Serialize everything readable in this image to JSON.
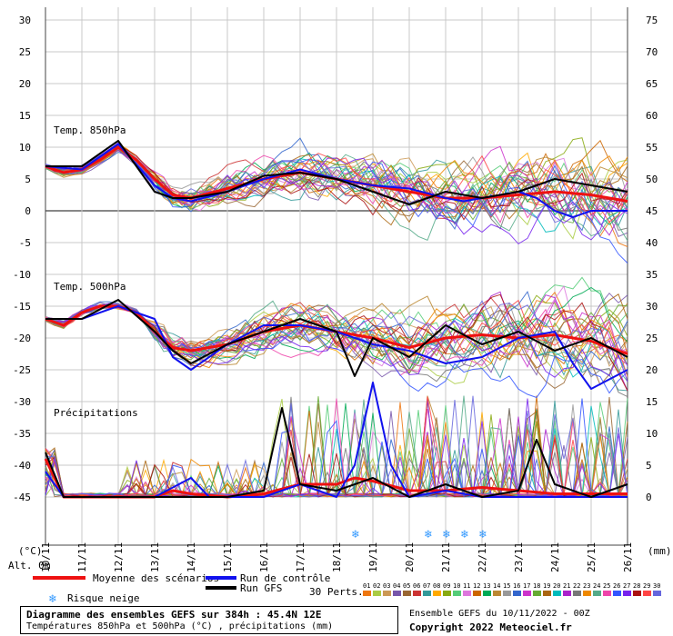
{
  "chart_data": {
    "type": "line",
    "title": "Diagramme des ensembles GEFS sur 384h : 45.4N 12E",
    "subtitle": "Températures 850hPa et 500hPa (°C) , précipitations (mm)",
    "panels": {
      "t850": "Temp. 850hPa",
      "t500": "Temp. 500hPa",
      "precip": "Précipitations"
    },
    "left_axis": {
      "unit": "(°C)",
      "range": [
        -45,
        30
      ],
      "ticks": [
        "30",
        "25",
        "20",
        "15",
        "10",
        "5",
        "0",
        "-5",
        "-10",
        "-15",
        "-20",
        "-25",
        "-30",
        "-35",
        "-40",
        "-45"
      ]
    },
    "right_axis": {
      "unit": "(mm)",
      "range": [
        0,
        75
      ],
      "ticks": [
        "75",
        "70",
        "65",
        "60",
        "55",
        "50",
        "45",
        "40",
        "35",
        "30",
        "25",
        "20",
        "15",
        "10",
        "5",
        "0"
      ]
    },
    "alt_label": "Alt. 0m",
    "x_dates": [
      "10/11",
      "11/11",
      "12/11",
      "13/11",
      "14/11",
      "15/11",
      "16/11",
      "17/11",
      "18/11",
      "19/11",
      "20/11",
      "21/11",
      "22/11",
      "23/11",
      "24/11",
      "25/11",
      "26/11"
    ],
    "x_range_days": [
      0,
      16
    ],
    "grid": true,
    "snow_risk_days": [
      8.6,
      10.6,
      11.1,
      11.6,
      12.1
    ],
    "series": [
      {
        "name": "Moyenne des scénarios",
        "color": "#ee1111",
        "t850": [
          [
            0,
            7
          ],
          [
            0.5,
            6
          ],
          [
            1,
            6.5
          ],
          [
            1.5,
            8
          ],
          [
            2,
            10
          ],
          [
            2.5,
            8
          ],
          [
            3,
            5
          ],
          [
            3.5,
            2.5
          ],
          [
            4,
            2
          ],
          [
            5,
            3.5
          ],
          [
            6,
            5
          ],
          [
            7,
            6
          ],
          [
            8,
            5
          ],
          [
            9,
            4
          ],
          [
            10,
            3
          ],
          [
            11,
            2
          ],
          [
            12,
            2
          ],
          [
            13,
            2.5
          ],
          [
            14,
            3
          ],
          [
            15,
            2.5
          ],
          [
            16,
            1.5
          ]
        ],
        "t500": [
          [
            0,
            -17
          ],
          [
            0.5,
            -18
          ],
          [
            1,
            -16
          ],
          [
            1.5,
            -15
          ],
          [
            2,
            -15
          ],
          [
            2.5,
            -16
          ],
          [
            3,
            -19
          ],
          [
            3.5,
            -21.5
          ],
          [
            4,
            -22
          ],
          [
            5,
            -21
          ],
          [
            6,
            -19
          ],
          [
            7,
            -18
          ],
          [
            8,
            -19
          ],
          [
            9,
            -20
          ],
          [
            10,
            -21.5
          ],
          [
            11,
            -20
          ],
          [
            12,
            -19.5
          ],
          [
            13,
            -20
          ],
          [
            14,
            -19.5
          ],
          [
            15,
            -20.5
          ],
          [
            16,
            -22.5
          ]
        ],
        "precip": [
          [
            0,
            6
          ],
          [
            0.5,
            0
          ],
          [
            1,
            0
          ],
          [
            2,
            0
          ],
          [
            3,
            0
          ],
          [
            3.5,
            1
          ],
          [
            4,
            0.5
          ],
          [
            5,
            0
          ],
          [
            6,
            0.5
          ],
          [
            7,
            2
          ],
          [
            8,
            2
          ],
          [
            8.5,
            3
          ],
          [
            9,
            2.5
          ],
          [
            10,
            1
          ],
          [
            11,
            1
          ],
          [
            12,
            1.5
          ],
          [
            13,
            1
          ],
          [
            14,
            0.5
          ],
          [
            15,
            0.5
          ],
          [
            16,
            0.5
          ]
        ]
      },
      {
        "name": "Run de contrôle",
        "color": "#1111ee",
        "t850": [
          [
            0,
            7
          ],
          [
            1,
            6.5
          ],
          [
            2,
            10.5
          ],
          [
            3,
            4
          ],
          [
            3.5,
            2
          ],
          [
            4,
            1.5
          ],
          [
            5,
            3
          ],
          [
            6,
            5
          ],
          [
            7,
            6.5
          ],
          [
            8,
            5
          ],
          [
            9,
            4
          ],
          [
            10,
            3.5
          ],
          [
            11,
            2
          ],
          [
            11.5,
            1.5
          ],
          [
            12,
            2
          ],
          [
            13,
            3
          ],
          [
            13.5,
            2
          ],
          [
            14,
            0
          ],
          [
            14.5,
            -1
          ],
          [
            15,
            0
          ],
          [
            16,
            0
          ]
        ],
        "t500": [
          [
            0,
            -17
          ],
          [
            1,
            -17
          ],
          [
            2,
            -15
          ],
          [
            3,
            -17
          ],
          [
            3.5,
            -23
          ],
          [
            4,
            -25
          ],
          [
            5,
            -21
          ],
          [
            6,
            -18
          ],
          [
            7,
            -18
          ],
          [
            8,
            -19
          ],
          [
            9,
            -21
          ],
          [
            10,
            -22
          ],
          [
            11,
            -24
          ],
          [
            12,
            -23
          ],
          [
            13,
            -20
          ],
          [
            14,
            -19
          ],
          [
            14.5,
            -24
          ],
          [
            15,
            -28
          ],
          [
            16,
            -25
          ]
        ],
        "precip": [
          [
            0,
            4
          ],
          [
            0.5,
            0
          ],
          [
            2,
            0
          ],
          [
            3,
            0
          ],
          [
            4,
            3
          ],
          [
            4.5,
            0
          ],
          [
            6,
            0
          ],
          [
            7,
            2
          ],
          [
            8,
            0
          ],
          [
            8.5,
            5
          ],
          [
            9,
            18
          ],
          [
            9.5,
            5
          ],
          [
            10,
            0
          ],
          [
            11,
            1
          ],
          [
            12,
            0
          ],
          [
            13,
            0
          ],
          [
            14,
            0
          ],
          [
            15,
            0
          ],
          [
            16,
            0
          ]
        ]
      },
      {
        "name": "Run GFS",
        "color": "#000000",
        "t850": [
          [
            0,
            7
          ],
          [
            1,
            7
          ],
          [
            2,
            11
          ],
          [
            3,
            3
          ],
          [
            3.5,
            2
          ],
          [
            4,
            2
          ],
          [
            5,
            3
          ],
          [
            6,
            5.5
          ],
          [
            7,
            6
          ],
          [
            8,
            5
          ],
          [
            9,
            3
          ],
          [
            10,
            1
          ],
          [
            11,
            3
          ],
          [
            12,
            2
          ],
          [
            13,
            3
          ],
          [
            14,
            5
          ],
          [
            15,
            4
          ],
          [
            16,
            3
          ]
        ],
        "t500": [
          [
            0,
            -17
          ],
          [
            1,
            -17
          ],
          [
            2,
            -14
          ],
          [
            3,
            -19
          ],
          [
            3.5,
            -22
          ],
          [
            4,
            -24
          ],
          [
            5,
            -21
          ],
          [
            6,
            -19
          ],
          [
            7,
            -17
          ],
          [
            8,
            -19
          ],
          [
            8.5,
            -26
          ],
          [
            9,
            -20
          ],
          [
            10,
            -23
          ],
          [
            11,
            -18
          ],
          [
            12,
            -21
          ],
          [
            13,
            -19
          ],
          [
            14,
            -22
          ],
          [
            15,
            -20
          ],
          [
            16,
            -23
          ]
        ],
        "precip": [
          [
            0,
            7
          ],
          [
            0.5,
            0
          ],
          [
            2,
            0
          ],
          [
            3,
            0
          ],
          [
            4,
            0
          ],
          [
            5,
            0
          ],
          [
            6,
            1
          ],
          [
            6.5,
            14
          ],
          [
            7,
            2
          ],
          [
            8,
            1
          ],
          [
            9,
            3
          ],
          [
            10,
            0
          ],
          [
            11,
            2
          ],
          [
            12,
            0
          ],
          [
            13,
            1
          ],
          [
            13.5,
            9
          ],
          [
            14,
            2
          ],
          [
            15,
            0
          ],
          [
            16,
            2
          ]
        ]
      }
    ]
  },
  "legend": {
    "mean": "Moyenne des scénarios",
    "control": "Run de contrôle",
    "gfs": "Run GFS",
    "snow": "Risque neige",
    "perts_label": "30 Perts.",
    "pert_numbers": [
      "01",
      "02",
      "03",
      "04",
      "05",
      "06",
      "07",
      "08",
      "09",
      "10",
      "11",
      "12",
      "13",
      "14",
      "15",
      "16",
      "17",
      "18",
      "19",
      "20",
      "21",
      "22",
      "23",
      "24",
      "25",
      "26",
      "27",
      "28",
      "29",
      "30"
    ],
    "pert_colors": [
      "#ee7711",
      "#aacc44",
      "#cc9955",
      "#7755aa",
      "#996633",
      "#cc3333",
      "#339999",
      "#ffaa00",
      "#88aa11",
      "#55cc77",
      "#dd77dd",
      "#cc6600",
      "#00aa55",
      "#bb8833",
      "#999999",
      "#3366cc",
      "#cc33cc",
      "#66aa33",
      "#aa6611",
      "#00bbbb",
      "#aa22cc",
      "#777777",
      "#ee8800",
      "#55aa88",
      "#ee44aa",
      "#3355ff",
      "#7722ee",
      "#aa1111",
      "#ff4444",
      "#6666dd"
    ]
  },
  "footer": {
    "title": "Diagramme des ensembles GEFS sur 384h : 45.4N 12E",
    "subtitle": "Températures 850hPa et 500hPa (°C) , précipitations (mm)",
    "run": "Ensemble GEFS du 10/11/2022 - 00Z",
    "copyright": "Copyright 2022 Meteociel.fr"
  }
}
